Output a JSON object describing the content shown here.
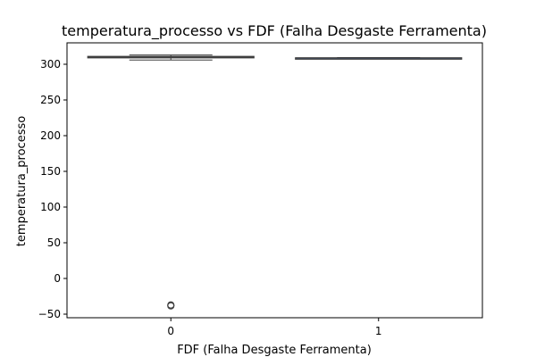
{
  "chart_data": {
    "type": "box",
    "title": "temperatura_processo vs FDF (Falha Desgaste Ferramenta)",
    "xlabel": "FDF (Falha Desgaste Ferramenta)",
    "ylabel": "temperatura_processo",
    "categories": [
      "0",
      "1"
    ],
    "ylim": [
      -55,
      330
    ],
    "yticks": [
      -50,
      0,
      50,
      100,
      150,
      200,
      250,
      300
    ],
    "boxes": [
      {
        "category": "0",
        "whisker_low": 306,
        "q1": 309,
        "median": 310,
        "q3": 311,
        "whisker_high": 313,
        "outliers": [
          -37,
          -38,
          -38.5
        ]
      },
      {
        "category": "1",
        "whisker_low": 308.3,
        "q1": 308.6,
        "median": 308.8,
        "q3": 309,
        "whisker_high": 309.4,
        "outliers": []
      }
    ],
    "grid": false,
    "legend": "none"
  }
}
